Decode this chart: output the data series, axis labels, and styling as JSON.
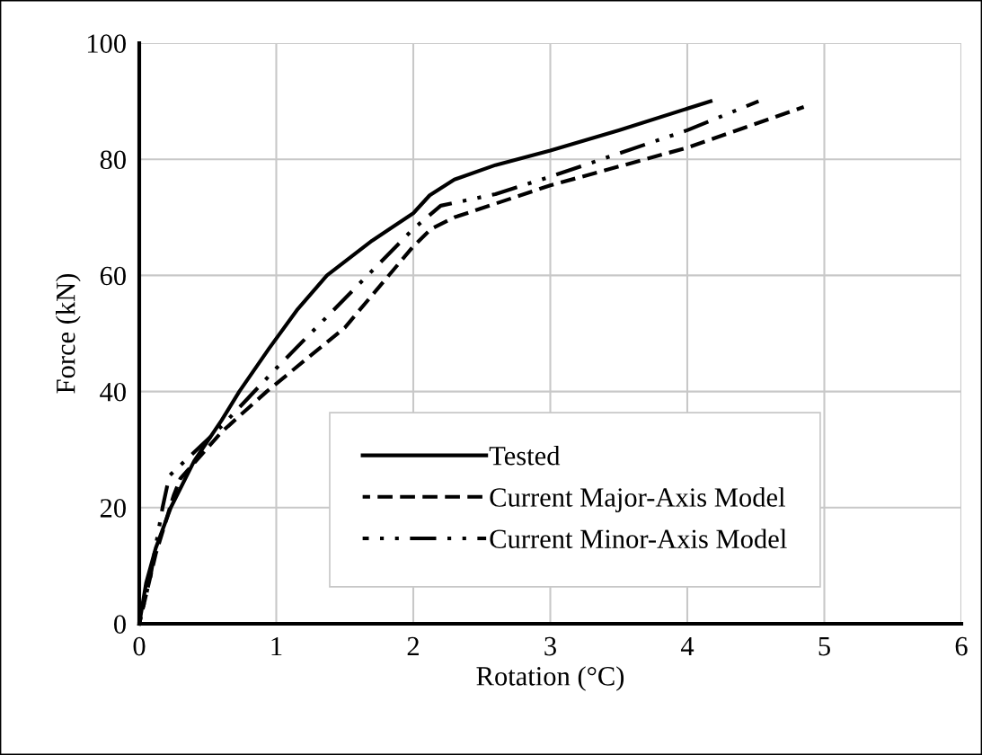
{
  "chart_data": {
    "type": "line",
    "xlabel": "Rotation (°C)",
    "ylabel": "Force (kN)",
    "xlim": [
      0,
      6
    ],
    "xticks": [
      0,
      1,
      2,
      3,
      4,
      5,
      6
    ],
    "ylim": [
      0,
      100
    ],
    "yticks": [
      0,
      20,
      40,
      60,
      80,
      100
    ],
    "grid": true,
    "legend": "bottom",
    "marker": "none",
    "series": [
      {
        "name": "Tested",
        "color": "#000000",
        "line_style": "solid",
        "x": [
          0,
          0.05,
          0.12,
          0.23,
          0.4,
          0.6,
          0.73,
          0.95,
          1.15,
          1.37,
          1.7,
          2.0,
          2.12,
          2.3,
          2.6,
          3.0,
          3.5,
          4.17
        ],
        "values": [
          0,
          7,
          13,
          20,
          28,
          35,
          40,
          47.5,
          54,
          60,
          66,
          70.7,
          73.8,
          76.5,
          79,
          81.5,
          85,
          90
        ]
      },
      {
        "name": "Current Major-Axis Model",
        "color": "#000000",
        "line_style": "dashed",
        "x": [
          0,
          0.12,
          0.25,
          0.3,
          0.6,
          0.93,
          1.5,
          2.0,
          2.13,
          2.3,
          3.0,
          4.0,
          4.85
        ],
        "values": [
          0,
          12,
          22,
          25,
          33,
          40,
          51,
          65,
          68,
          70,
          75.5,
          82,
          89
        ]
      },
      {
        "name": "Current Minor-Axis Model",
        "color": "#000000",
        "line_style": "dash-dot",
        "x": [
          0,
          0.08,
          0.17,
          0.22,
          0.6,
          1.0,
          1.5,
          2.0,
          2.2,
          2.6,
          3.0,
          4.0,
          4.52
        ],
        "values": [
          0,
          8,
          20,
          25.5,
          34,
          44,
          56,
          68,
          72,
          74,
          77,
          85,
          90
        ]
      }
    ]
  }
}
